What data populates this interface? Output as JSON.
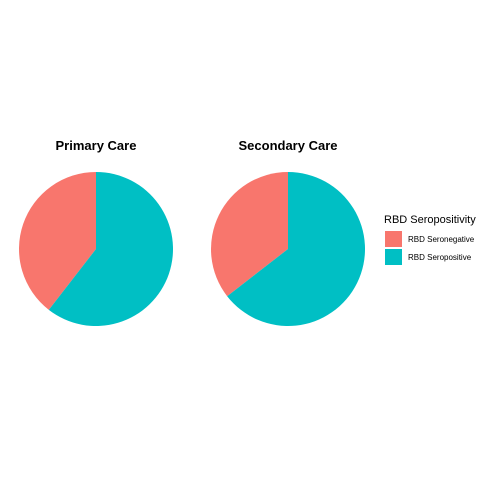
{
  "chart_data": [
    {
      "type": "pie",
      "title": "Primary Care",
      "categories": [
        "RBD Seronegative",
        "RBD Seropositive"
      ],
      "values": [
        39.5,
        60.5
      ],
      "colors": [
        "#F8766D",
        "#00BFC4"
      ],
      "start": "12 o'clock",
      "direction": "counterclockwise"
    },
    {
      "type": "pie",
      "title": "Secondary Care",
      "categories": [
        "RBD Seronegative",
        "RBD Seropositive"
      ],
      "values": [
        35.5,
        64.5
      ],
      "colors": [
        "#F8766D",
        "#00BFC4"
      ],
      "start": "12 o'clock",
      "direction": "counterclockwise"
    }
  ],
  "legend": {
    "title": "RBD Seropositivity",
    "placement": "right",
    "items": [
      {
        "label": "RBD Seronegative",
        "color": "#F8766D"
      },
      {
        "label": "RBD Seropositive",
        "color": "#00BFC4"
      }
    ]
  }
}
